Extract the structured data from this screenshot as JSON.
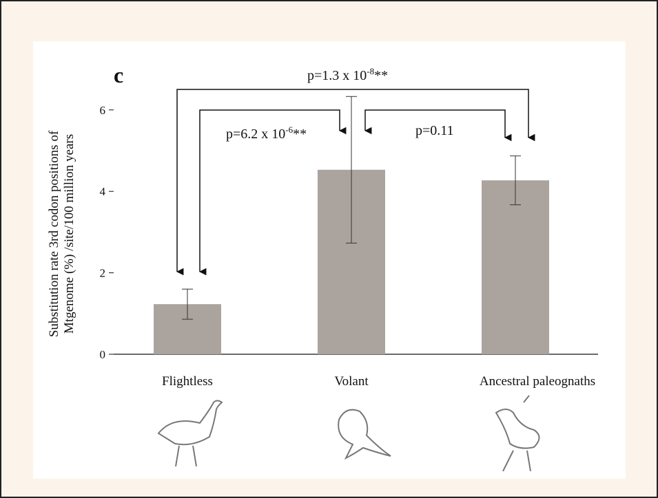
{
  "chart_data": {
    "type": "bar",
    "panel_label": "c",
    "ylabel": [
      "Substitution rate 3rd codon positions of",
      "Mtgenome (%) /site/100 million years"
    ],
    "categories": [
      "Flightless",
      "Volant",
      "Ancestral paleognaths"
    ],
    "values": [
      1.23,
      4.53,
      4.27
    ],
    "errors": [
      0.37,
      1.8,
      0.6
    ],
    "color": "#aba39d",
    "ylim": [
      0,
      6.5
    ],
    "yticks": [
      0,
      2,
      4,
      6
    ],
    "annotations": [
      {
        "base": "p=1.3 x 10",
        "exp": "-8",
        "suffix": "**"
      },
      {
        "base": "p=6.2 x 10",
        "exp": "-6",
        "suffix": "**"
      },
      {
        "base": "p=0.11"
      }
    ]
  }
}
